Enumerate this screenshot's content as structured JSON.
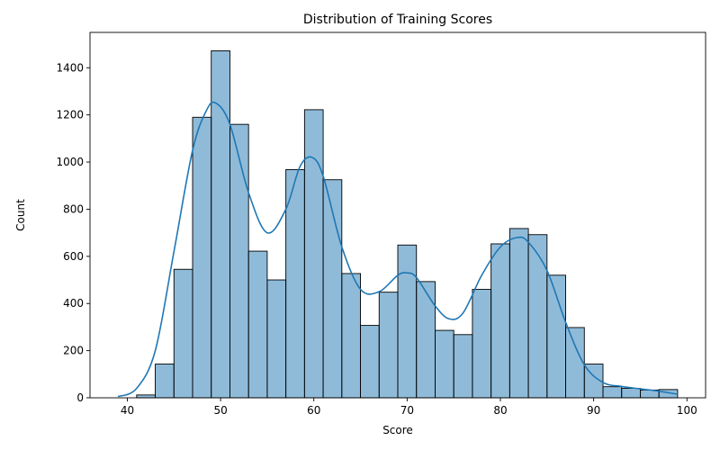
{
  "chart_data": {
    "type": "bar",
    "title": "Distribution of Training Scores",
    "xlabel": "Score",
    "ylabel": "Count",
    "xlim": [
      36,
      102
    ],
    "ylim": [
      0,
      1550
    ],
    "xticks": [
      40,
      50,
      60,
      70,
      80,
      90,
      100
    ],
    "yticks": [
      0,
      200,
      400,
      600,
      800,
      1000,
      1200,
      1400
    ],
    "grid": false,
    "legend": "none",
    "bar_color": "#1f77b4",
    "bar_opacity": 0.5,
    "kde_color": "#1f77b4",
    "bins": [
      {
        "x0": 41.0,
        "x1": 43.0,
        "count": 12
      },
      {
        "x0": 43.0,
        "x1": 45.0,
        "count": 143
      },
      {
        "x0": 45.0,
        "x1": 47.0,
        "count": 545
      },
      {
        "x0": 47.0,
        "x1": 49.0,
        "count": 1190
      },
      {
        "x0": 49.0,
        "x1": 51.0,
        "count": 1472
      },
      {
        "x0": 51.0,
        "x1": 53.0,
        "count": 1160
      },
      {
        "x0": 53.0,
        "x1": 55.0,
        "count": 622
      },
      {
        "x0": 55.0,
        "x1": 57.0,
        "count": 500
      },
      {
        "x0": 57.0,
        "x1": 59.0,
        "count": 968
      },
      {
        "x0": 59.0,
        "x1": 61.0,
        "count": 1222
      },
      {
        "x0": 61.0,
        "x1": 63.0,
        "count": 925
      },
      {
        "x0": 63.0,
        "x1": 65.0,
        "count": 527
      },
      {
        "x0": 65.0,
        "x1": 67.0,
        "count": 307
      },
      {
        "x0": 67.0,
        "x1": 69.0,
        "count": 448
      },
      {
        "x0": 69.0,
        "x1": 71.0,
        "count": 648
      },
      {
        "x0": 71.0,
        "x1": 73.0,
        "count": 493
      },
      {
        "x0": 73.0,
        "x1": 75.0,
        "count": 286
      },
      {
        "x0": 75.0,
        "x1": 77.0,
        "count": 268
      },
      {
        "x0": 77.0,
        "x1": 79.0,
        "count": 460
      },
      {
        "x0": 79.0,
        "x1": 81.0,
        "count": 653
      },
      {
        "x0": 81.0,
        "x1": 83.0,
        "count": 718
      },
      {
        "x0": 83.0,
        "x1": 85.0,
        "count": 692
      },
      {
        "x0": 85.0,
        "x1": 87.0,
        "count": 520
      },
      {
        "x0": 87.0,
        "x1": 89.0,
        "count": 298
      },
      {
        "x0": 89.0,
        "x1": 91.0,
        "count": 143
      },
      {
        "x0": 91.0,
        "x1": 93.0,
        "count": 47
      },
      {
        "x0": 93.0,
        "x1": 95.0,
        "count": 40
      },
      {
        "x0": 95.0,
        "x1": 97.0,
        "count": 33
      },
      {
        "x0": 97.0,
        "x1": 99.0,
        "count": 35
      }
    ],
    "kde": {
      "name": "",
      "x": [
        39,
        41,
        43,
        45,
        47,
        48.5,
        49.5,
        51,
        53,
        55,
        57,
        58.5,
        59.8,
        61,
        63,
        65,
        67,
        69,
        70,
        71,
        73,
        74.5,
        76,
        78,
        80,
        81.8,
        83,
        85,
        87,
        89,
        91,
        93,
        95,
        97,
        99
      ],
      "y": [
        5,
        40,
        200,
        620,
        1050,
        1220,
        1250,
        1160,
        870,
        700,
        800,
        980,
        1020,
        940,
        640,
        460,
        450,
        520,
        530,
        510,
        390,
        335,
        360,
        520,
        640,
        680,
        660,
        540,
        320,
        140,
        65,
        48,
        38,
        28,
        15
      ]
    }
  }
}
